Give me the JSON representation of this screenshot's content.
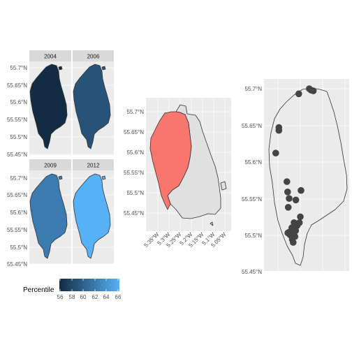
{
  "colors": {
    "panel_bg": "#ebebeb",
    "grid": "#ffffff",
    "strip_bg": "#d9d9d9",
    "outline": "#333333",
    "highlight_fill": "#f8766d",
    "other_fill": "#e0e0e0",
    "point": "#444444",
    "gradient_low": "#132b43",
    "gradient_high": "#56b1f7"
  },
  "chart_data": [
    {
      "type": "choropleth-facet",
      "title": "",
      "xlabel": "",
      "ylabel": "",
      "ylim": [
        55.45,
        55.7
      ],
      "y_ticks": [
        "55.7°N",
        "55.65°N",
        "55.6°N",
        "55.55°N",
        "55.5°N",
        "55.45°N"
      ],
      "facets": [
        {
          "label": "2004",
          "percentile": 56
        },
        {
          "label": "2006",
          "percentile": 59
        },
        {
          "label": "2009",
          "percentile": 62
        },
        {
          "label": "2012",
          "percentile": 66
        }
      ],
      "legend": {
        "title": "Percentile",
        "position": "bottom",
        "ticks": [
          "56",
          "58",
          "60",
          "62",
          "64",
          "66"
        ],
        "range": [
          56,
          66
        ]
      }
    },
    {
      "type": "map-highlight",
      "title": "",
      "xlim": [
        -5.4,
        -5.02
      ],
      "ylim": [
        55.4,
        55.73
      ],
      "x_ticks": [
        "5.35°W",
        "5.3°W",
        "5.25°W",
        "5.2°W",
        "5.15°W",
        "5.1°W",
        "5.05°W"
      ],
      "y_ticks": [
        "55.7°N",
        "55.65°N",
        "55.6°N",
        "55.55°N",
        "55.5°N",
        "55.45°N"
      ]
    },
    {
      "type": "scatter-map",
      "title": "",
      "xlim": [
        -5.4,
        -5.02
      ],
      "ylim": [
        55.44,
        55.72
      ],
      "y_ticks": [
        "55.7°N",
        "55.65°N",
        "55.6°N",
        "55.55°N",
        "55.5°N",
        "55.45°N"
      ],
      "points": [
        {
          "x": -5.39,
          "y": 55.612
        },
        {
          "x": -5.376,
          "y": 55.643
        },
        {
          "x": -5.376,
          "y": 55.647
        },
        {
          "x": -5.287,
          "y": 55.693
        },
        {
          "x": -5.24,
          "y": 55.7
        },
        {
          "x": -5.232,
          "y": 55.698
        },
        {
          "x": -5.222,
          "y": 55.697
        },
        {
          "x": -5.34,
          "y": 55.573
        },
        {
          "x": -5.337,
          "y": 55.559
        },
        {
          "x": -5.33,
          "y": 55.55
        },
        {
          "x": -5.334,
          "y": 55.538
        },
        {
          "x": -5.3,
          "y": 55.548
        },
        {
          "x": -5.277,
          "y": 55.561
        },
        {
          "x": -5.28,
          "y": 55.525
        },
        {
          "x": -5.308,
          "y": 55.517
        },
        {
          "x": -5.294,
          "y": 55.513
        },
        {
          "x": -5.284,
          "y": 55.517
        },
        {
          "x": -5.318,
          "y": 55.51
        },
        {
          "x": -5.33,
          "y": 55.504
        },
        {
          "x": -5.325,
          "y": 55.5
        },
        {
          "x": -5.313,
          "y": 55.502
        },
        {
          "x": -5.301,
          "y": 55.506
        },
        {
          "x": -5.316,
          "y": 55.494
        },
        {
          "x": -5.304,
          "y": 55.498
        },
        {
          "x": -5.336,
          "y": 55.503
        },
        {
          "x": -5.312,
          "y": 55.49
        }
      ]
    }
  ]
}
